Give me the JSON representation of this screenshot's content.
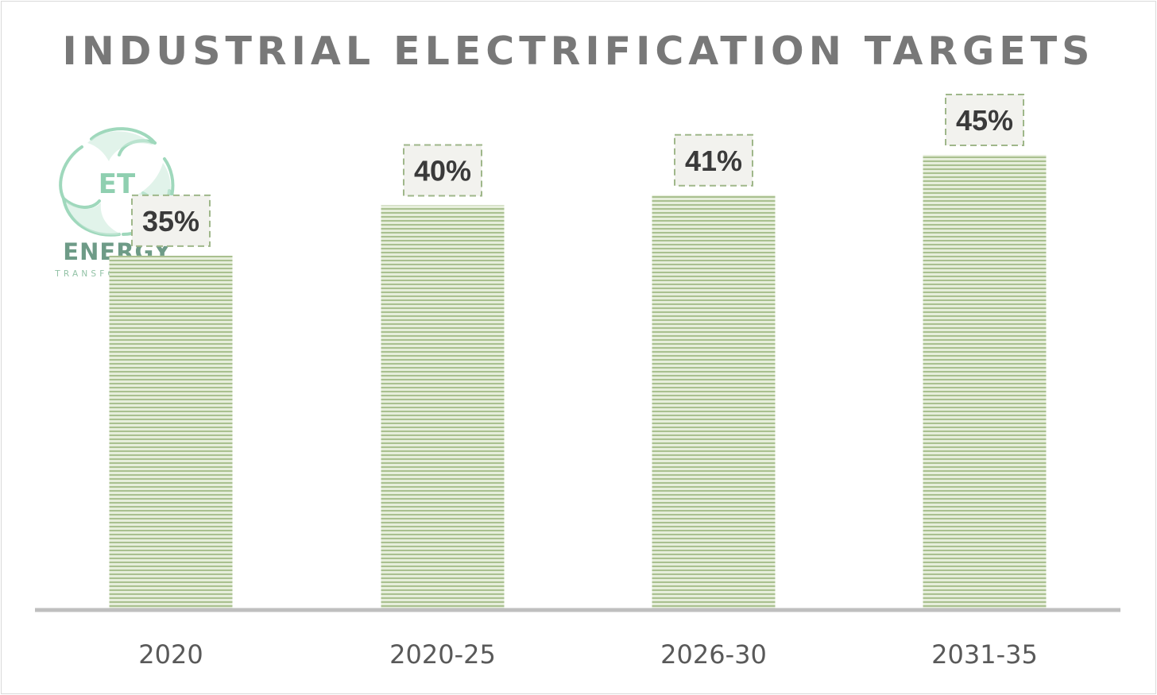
{
  "logo": {
    "initials": "ET",
    "word": "ENERGY",
    "subtitle": "TRANSFORMATION",
    "icon": "leaf-recycle-icon"
  },
  "colors": {
    "bar_light": "#e3ecd6",
    "bar_dark": "#a9c08f",
    "label_border": "#9fb78a",
    "label_fill": "#f2f2ee",
    "axis": "#bfbfbf",
    "title": "#787878",
    "logo_green": "#8fcfb0"
  },
  "chart_data": {
    "type": "bar",
    "title": "INDUSTRIAL ELECTRIFICATION TARGETS",
    "categories": [
      "2020",
      "2020-25",
      "2026-30",
      "2031-35"
    ],
    "values": [
      35,
      40,
      41,
      45
    ],
    "data_labels": [
      "35%",
      "40%",
      "41%",
      "45%"
    ],
    "xlabel": "",
    "ylabel": "",
    "unit": "%",
    "grid": false,
    "legend": "none"
  }
}
